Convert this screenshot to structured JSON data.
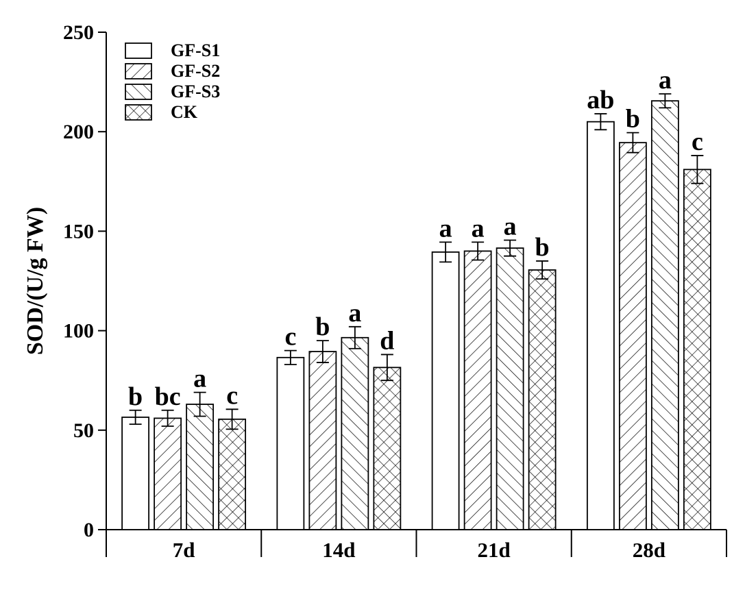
{
  "chart_data": {
    "type": "bar",
    "title": "",
    "xlabel": "",
    "ylabel": "SOD/(U/g FW)",
    "ylim": [
      0,
      250
    ],
    "yticks": [
      0,
      50,
      100,
      150,
      200,
      250
    ],
    "categories": [
      "7d",
      "14d",
      "21d",
      "28d"
    ],
    "legend_position": "top-left",
    "grid": false,
    "series": [
      {
        "name": "GF-S1",
        "pattern": "none",
        "values": [
          56.5,
          86.5,
          139.5,
          205
        ],
        "errors": [
          3.5,
          3.5,
          5,
          4
        ],
        "labels": [
          "b",
          "c",
          "a",
          "ab"
        ]
      },
      {
        "name": "GF-S2",
        "pattern": "forward-diagonal",
        "values": [
          56,
          89.5,
          140,
          194.5
        ],
        "errors": [
          4,
          5.5,
          4.5,
          5
        ],
        "labels": [
          "bc",
          "b",
          "a",
          "b"
        ]
      },
      {
        "name": "GF-S3",
        "pattern": "back-diagonal",
        "values": [
          63,
          96.5,
          141.5,
          215.5
        ],
        "errors": [
          6,
          5.5,
          4,
          3.5
        ],
        "labels": [
          "a",
          "a",
          "a",
          "a"
        ]
      },
      {
        "name": "CK",
        "pattern": "cross-hatch",
        "values": [
          55.5,
          81.5,
          130.5,
          181
        ],
        "errors": [
          5,
          6.5,
          4.5,
          7
        ],
        "labels": [
          "c",
          "d",
          "b",
          "c"
        ]
      }
    ]
  }
}
